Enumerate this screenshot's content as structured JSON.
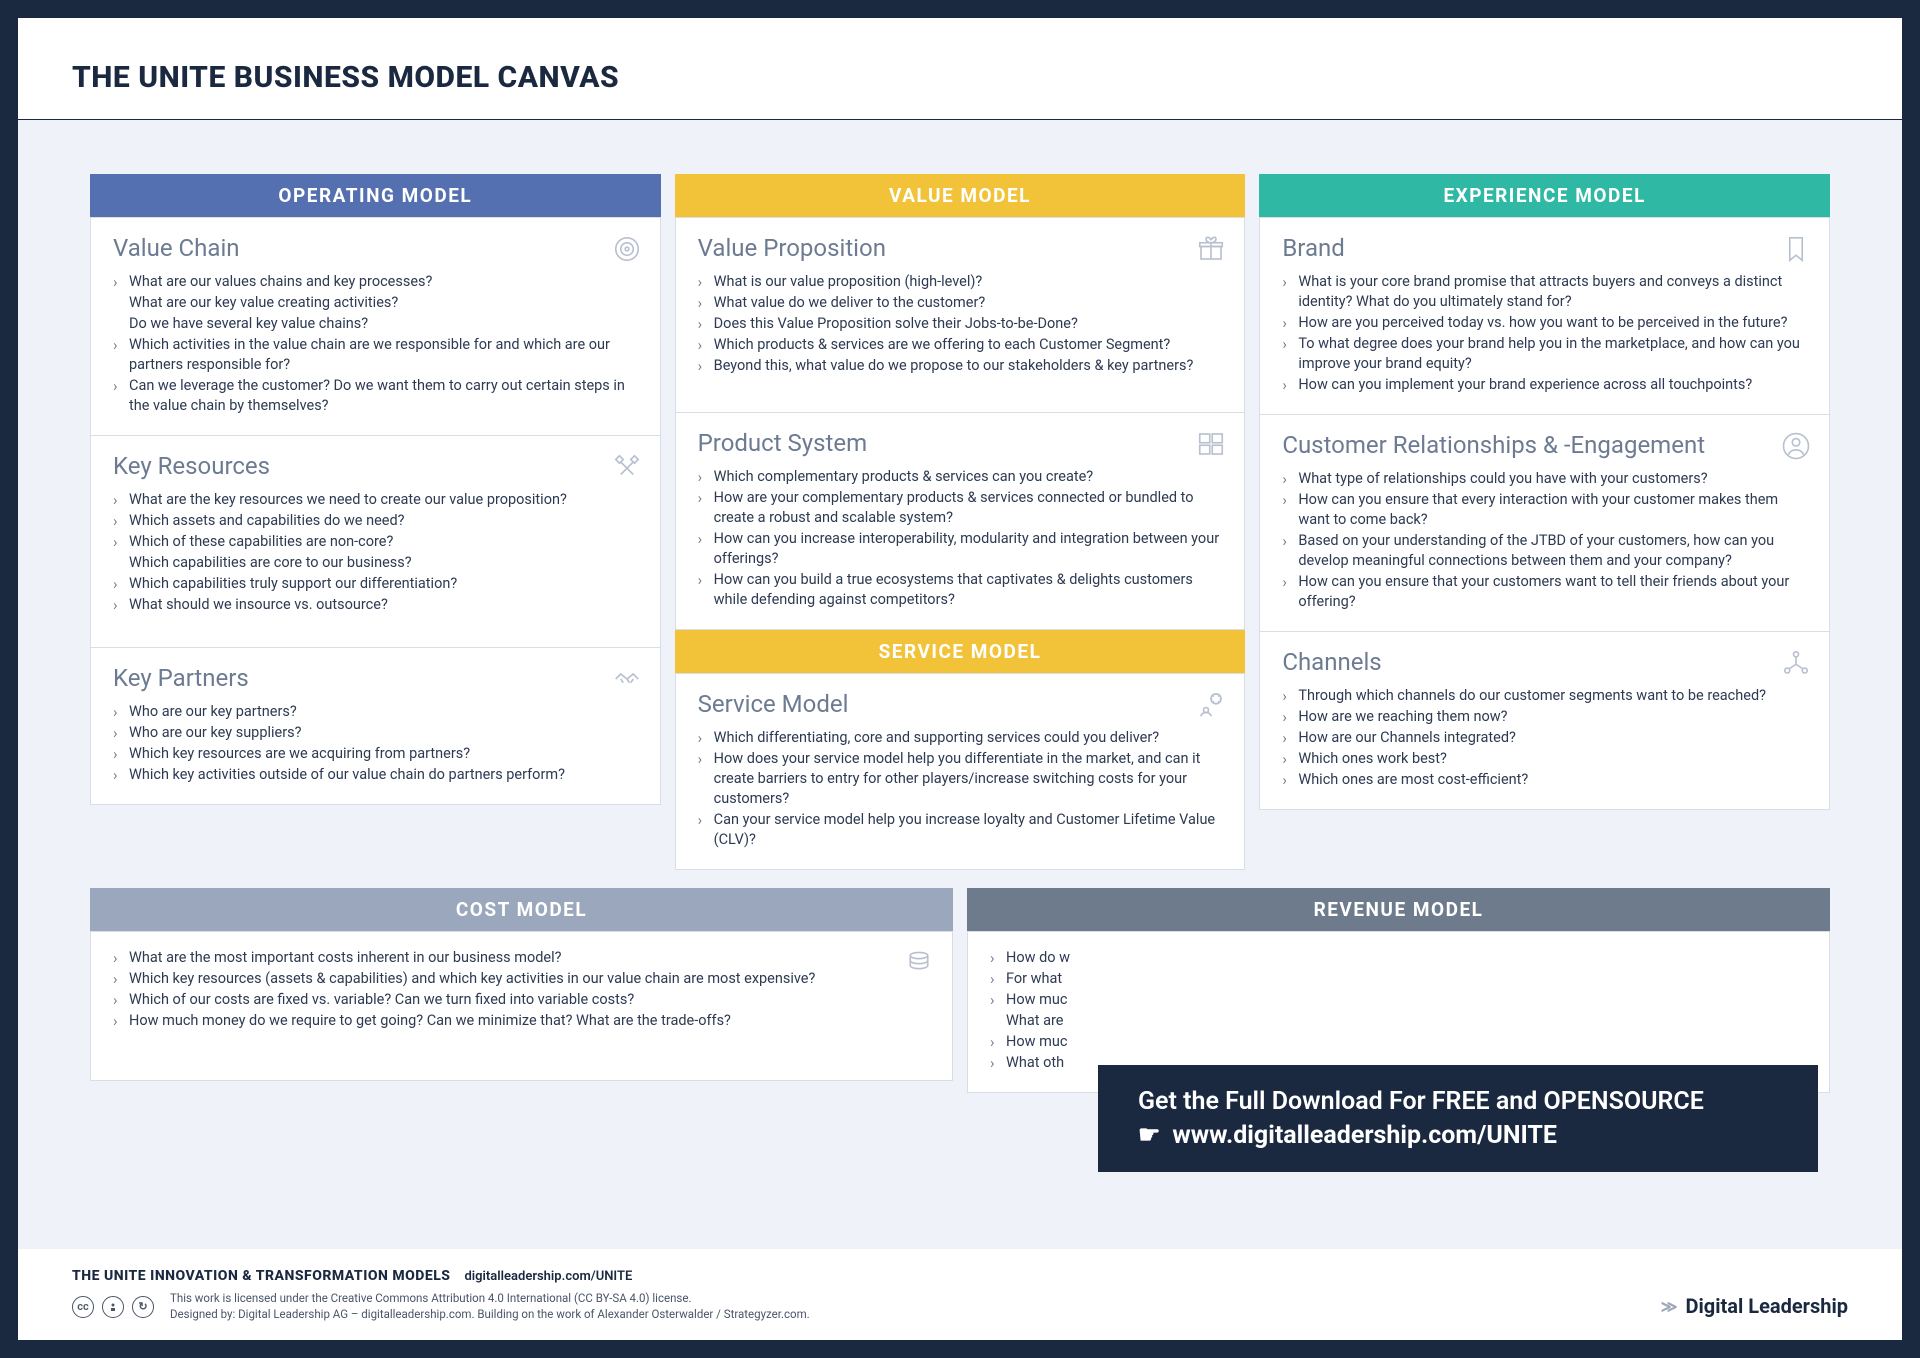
{
  "title": "THE UNITE BUSINESS MODEL CANVAS",
  "colors": {
    "operating": "#5470b0",
    "value": "#f2c238",
    "service": "#f2c238",
    "experience": "#2fb9a4",
    "cost": "#9aa7bc",
    "revenue": "#6d7b8c",
    "page_bg": "#eff2f8",
    "frame": "#1a2940"
  },
  "columns": {
    "operating": {
      "header": "OPERATING MODEL",
      "cards": [
        {
          "title": "Value Chain",
          "icon": "target-icon",
          "q": [
            "What are our values chains and key processes?",
            "|What are our key value creating activities?",
            "|Do we have several key value chains?",
            "Which activities in the value chain are we responsible for and which are our partners responsible for?",
            "Can we leverage the customer? Do we want them to carry out certain steps in the value chain by themselves?"
          ]
        },
        {
          "title": "Key Resources",
          "icon": "tools-icon",
          "q": [
            "What are the key resources we need to create our value proposition?",
            "Which assets and capabilities do we need?",
            "Which of these capabilities are non-core?",
            "|Which capabilities  are core to our business?",
            "Which capabilities truly support our differentiation?",
            "What should we insource vs. outsource?"
          ]
        },
        {
          "title": "Key Partners",
          "icon": "handshake-icon",
          "q": [
            "Who are our key partners?",
            "Who are our key suppliers?",
            "Which key resources are we acquiring from partners?",
            "Which key activities outside of our value chain do partners perform?"
          ]
        }
      ]
    },
    "value": {
      "header": "VALUE MODEL",
      "cards": [
        {
          "title": "Value Proposition",
          "icon": "gift-icon",
          "q": [
            "What is our value proposition (high-level)?",
            "What value do we deliver to the customer?",
            "Does this Value Proposition solve their Jobs-to-be-Done?",
            "Which products & services are we offering to each Customer Segment?",
            "Beyond this, what value do we propose to our stakeholders & key partners?"
          ]
        },
        {
          "title": "Product System",
          "icon": "boxes-icon",
          "q": [
            "Which complementary products & services can you create?",
            "How are your complementary products & services connected or bundled to create a robust and scalable system?",
            "How can you increase interoperability, modularity and integration between your offerings?",
            "How can you build a true ecosystems that captivates & delights customers while defending against competitors?"
          ]
        }
      ],
      "service_header": "SERVICE MODEL",
      "service_card": {
        "title": "Service Model",
        "icon": "gear-person-icon",
        "q": [
          "Which differentiating, core and supporting services could you deliver?",
          "How does your service model help you differentiate in the market, and can it create barriers to entry for other players/increase switching costs for your customers?",
          "Can your service model help you increase loyalty and Customer Lifetime Value (CLV)?"
        ]
      }
    },
    "experience": {
      "header": "EXPERIENCE MODEL",
      "cards": [
        {
          "title": "Brand",
          "icon": "bookmark-icon",
          "q": [
            "What is your core brand promise that attracts buyers and conveys a distinct identity? What do you ultimately stand for?",
            "How are you perceived today vs. how you want to be perceived in the future?",
            "To what degree does your brand help you in the marketplace, and how can you improve your brand equity?",
            "How can you implement your brand experience across all touchpoints?"
          ]
        },
        {
          "title": "Customer Relationships & -Engagement",
          "icon": "person-circle-icon",
          "q": [
            "What type of relationships could you have with your customers?",
            "How can you ensure that every interaction with your customer makes them want to come back?",
            "Based on your understanding of the JTBD of your customers, how can you develop meaningful connections between them and your company?",
            "How can you ensure that your customers want to tell their friends about your offering?"
          ]
        },
        {
          "title": "Channels",
          "icon": "network-icon",
          "q": [
            "Through which channels do our customer segments want to be reached?",
            "How are we reaching them now?",
            "How are our Channels integrated?",
            "Which ones work best?",
            "Which ones are most cost-efficient?"
          ]
        }
      ]
    }
  },
  "bottom": {
    "cost": {
      "header": "COST MODEL",
      "icon": "coins-icon",
      "q": [
        "What are the most important costs inherent in our business model?",
        "Which key resources (assets & capabilities) and which key activities in our value chain are most expensive?",
        "Which of our costs are fixed vs. variable? Can we turn fixed into variable costs?",
        "How much money do we require to get going? Can we minimize that? What are the trade-offs?"
      ]
    },
    "revenue": {
      "header": "REVENUE MODEL",
      "q": [
        "How do w",
        "For what",
        "How muc",
        "|What are",
        "How muc",
        "What oth"
      ]
    }
  },
  "overlay": {
    "line1": "Get the Full Download For FREE and OPENSOURCE",
    "line2": "www.digitalleadership.com/UNITE"
  },
  "footer": {
    "title": "THE UNITE INNOVATION & TRANSFORMATION MODELS",
    "link": "digitalleadership.com/UNITE",
    "license1": "This work is licensed under the Creative Commons Attribution 4.0 International (CC BY-SA 4.0) license.",
    "license2": "Designed by: Digital Leadership AG – digitalleadership.com. Building on the work of Alexander Osterwalder / Strategyzer.com.",
    "brand": "Digital Leadership"
  }
}
